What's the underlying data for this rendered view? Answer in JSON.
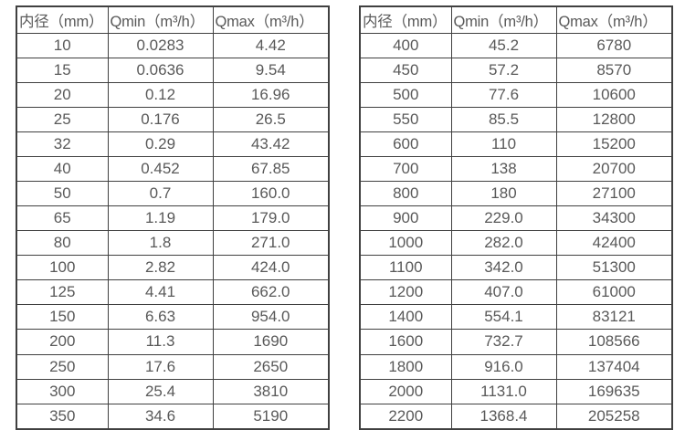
{
  "colors": {
    "background": "#ffffff",
    "table_border": "#404040",
    "text": "#595959"
  },
  "tables": [
    {
      "name": "flow-table-small-diameters",
      "headers": [
        "内径（mm）",
        "Qmin（m³/h）",
        "Qmax（m³/h）"
      ],
      "rows": [
        [
          "10",
          "0.0283",
          "4.42"
        ],
        [
          "15",
          "0.0636",
          "9.54"
        ],
        [
          "20",
          "0.12",
          "16.96"
        ],
        [
          "25",
          "0.176",
          "26.5"
        ],
        [
          "32",
          "0.29",
          "43.42"
        ],
        [
          "40",
          "0.452",
          "67.85"
        ],
        [
          "50",
          "0.7",
          "160.0"
        ],
        [
          "65",
          "1.19",
          "179.0"
        ],
        [
          "80",
          "1.8",
          "271.0"
        ],
        [
          "100",
          "2.82",
          "424.0"
        ],
        [
          "125",
          "4.41",
          "662.0"
        ],
        [
          "150",
          "6.63",
          "954.0"
        ],
        [
          "200",
          "11.3",
          "1690"
        ],
        [
          "250",
          "17.6",
          "2650"
        ],
        [
          "300",
          "25.4",
          "3810"
        ],
        [
          "350",
          "34.6",
          "5190"
        ]
      ]
    },
    {
      "name": "flow-table-large-diameters",
      "headers": [
        "内径（mm）",
        "Qmin（m³/h）",
        "Qmax（m³/h）"
      ],
      "rows": [
        [
          "400",
          "45.2",
          "6780"
        ],
        [
          "450",
          "57.2",
          "8570"
        ],
        [
          "500",
          "77.6",
          "10600"
        ],
        [
          "550",
          "85.5",
          "12800"
        ],
        [
          "600",
          "110",
          "15200"
        ],
        [
          "700",
          "138",
          "20700"
        ],
        [
          "800",
          "180",
          "27100"
        ],
        [
          "900",
          "229.0",
          "34300"
        ],
        [
          "1000",
          "282.0",
          "42400"
        ],
        [
          "1100",
          "342.0",
          "51300"
        ],
        [
          "1200",
          "407.0",
          "61000"
        ],
        [
          "1400",
          "554.1",
          "83121"
        ],
        [
          "1600",
          "732.7",
          "108566"
        ],
        [
          "1800",
          "916.0",
          "137404"
        ],
        [
          "2000",
          "1131.0",
          "169635"
        ],
        [
          "2200",
          "1368.4",
          "205258"
        ]
      ]
    }
  ]
}
